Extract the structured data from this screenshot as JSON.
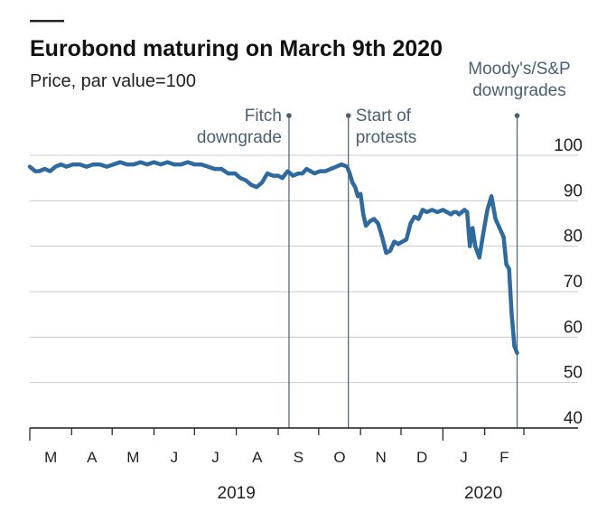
{
  "chart_data": {
    "type": "line",
    "title": "Eurobond maturing on March 9th 2020",
    "subtitle": "Price, par value=100",
    "ylim": [
      40,
      100
    ],
    "yticks": [
      40,
      50,
      60,
      70,
      80,
      90,
      100
    ],
    "xlim": [
      "2019-03-01",
      "2020-03-01"
    ],
    "x_tick_labels": [
      "M",
      "A",
      "M",
      "J",
      "J",
      "A",
      "S",
      "O",
      "N",
      "D",
      "J",
      "F"
    ],
    "x_years": [
      "2019",
      "2020"
    ],
    "grid": true,
    "colors": {
      "line": "#2e6a9e",
      "annotation": "#4a5f70",
      "grid": "#c9c9c9"
    },
    "annotations": [
      {
        "date": "2019-09-09",
        "lines": [
          "Fitch",
          "downgrade"
        ]
      },
      {
        "date": "2019-10-23",
        "lines": [
          "Start of",
          "protests"
        ]
      },
      {
        "date": "2020-02-25",
        "lines": [
          "Moody's/S&P",
          "downgrades"
        ]
      }
    ],
    "series": [
      {
        "x": [
          "2019-03-01",
          "2019-03-05",
          "2019-03-08",
          "2019-03-12",
          "2019-03-16",
          "2019-03-20",
          "2019-03-24",
          "2019-03-28",
          "2019-04-02",
          "2019-04-07",
          "2019-04-12",
          "2019-04-17",
          "2019-04-22",
          "2019-04-27",
          "2019-05-02",
          "2019-05-07",
          "2019-05-12",
          "2019-05-17",
          "2019-05-22",
          "2019-05-27",
          "2019-06-01",
          "2019-06-06",
          "2019-06-11",
          "2019-06-16",
          "2019-06-21",
          "2019-06-26",
          "2019-07-01",
          "2019-07-06",
          "2019-07-11",
          "2019-07-16",
          "2019-07-21",
          "2019-07-26",
          "2019-07-31",
          "2019-08-04",
          "2019-08-08",
          "2019-08-12",
          "2019-08-16",
          "2019-08-20",
          "2019-08-24",
          "2019-08-28",
          "2019-09-01",
          "2019-09-04",
          "2019-09-08",
          "2019-09-12",
          "2019-09-16",
          "2019-09-19",
          "2019-09-22",
          "2019-09-25",
          "2019-09-28",
          "2019-10-02",
          "2019-10-06",
          "2019-10-10",
          "2019-10-14",
          "2019-10-18",
          "2019-10-22",
          "2019-10-24",
          "2019-10-26",
          "2019-10-28",
          "2019-10-30",
          "2019-11-01",
          "2019-11-03",
          "2019-11-05",
          "2019-11-08",
          "2019-11-11",
          "2019-11-14",
          "2019-11-17",
          "2019-11-20",
          "2019-11-23",
          "2019-11-26",
          "2019-11-29",
          "2019-12-02",
          "2019-12-05",
          "2019-12-08",
          "2019-12-11",
          "2019-12-14",
          "2019-12-17",
          "2019-12-20",
          "2019-12-24",
          "2019-12-28",
          "2020-01-01",
          "2020-01-04",
          "2020-01-07",
          "2020-01-09",
          "2020-01-11",
          "2020-01-13",
          "2020-01-15",
          "2020-01-17",
          "2020-01-19",
          "2020-01-21",
          "2020-01-23",
          "2020-01-25",
          "2020-01-28",
          "2020-01-31",
          "2020-02-03",
          "2020-02-06",
          "2020-02-09",
          "2020-02-12",
          "2020-02-15",
          "2020-02-17",
          "2020-02-19",
          "2020-02-21",
          "2020-02-23",
          "2020-02-25"
        ],
        "y": [
          97.5,
          96.5,
          96.5,
          97.0,
          96.5,
          97.5,
          98.0,
          97.5,
          98.0,
          98.0,
          97.5,
          98.0,
          98.0,
          97.5,
          98.0,
          98.5,
          98.0,
          98.0,
          98.5,
          98.0,
          98.5,
          98.0,
          98.5,
          98.0,
          98.0,
          98.5,
          98.0,
          98.0,
          97.5,
          97.0,
          97.0,
          96.0,
          96.0,
          95.0,
          94.5,
          93.5,
          93.0,
          94.0,
          96.0,
          95.5,
          95.5,
          95.0,
          96.5,
          95.5,
          96.0,
          96.0,
          97.0,
          96.5,
          96.0,
          96.5,
          96.5,
          97.0,
          97.5,
          98.0,
          97.5,
          96.0,
          94.0,
          93.0,
          91.0,
          91.5,
          87.0,
          84.5,
          85.5,
          86.0,
          85.0,
          82.0,
          78.5,
          79.0,
          81.0,
          80.5,
          81.0,
          81.5,
          85.0,
          86.5,
          86.0,
          88.0,
          87.5,
          88.0,
          87.5,
          88.0,
          87.5,
          87.0,
          87.5,
          87.5,
          87.0,
          87.5,
          88.0,
          87.5,
          80.0,
          84.0,
          80.0,
          77.5,
          83.0,
          88.0,
          91.0,
          86.0,
          84.0,
          82.0,
          76.0,
          75.0,
          65.0,
          58.0,
          56.5
        ]
      }
    ]
  }
}
